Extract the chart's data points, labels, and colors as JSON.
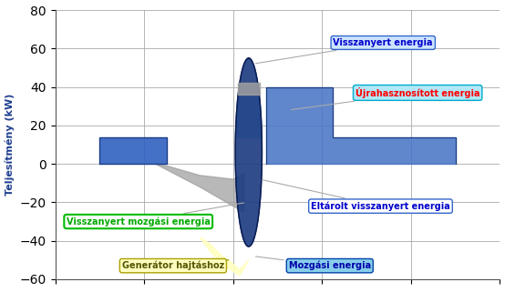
{
  "ylim": [
    -60,
    80
  ],
  "ylabel": "Teljesítmény (kW)",
  "yticks": [
    -60,
    -40,
    -20,
    0,
    20,
    40,
    60,
    80
  ],
  "grid_color": "#aaaaaa",
  "label_visszanyert": "Visszanyert energia",
  "label_ujrahasznosított": "Újrahasznosított energia",
  "label_visszanyert_mozgasi": "Visszanyert mozgási energia",
  "label_eltarolt": "Eltárolt visszanyert energia",
  "label_generator": "Generátor hajtáshoz",
  "label_mozgasi": "Mozgási energia",
  "color_mid_blue": "#4472c4",
  "color_dark_blue": "#1a3a80",
  "color_light_blue": "#87ceeb",
  "color_cyan": "#a8d8ea",
  "color_gray": "#a0a0a0",
  "color_green": "#c8f0a0",
  "color_yellow": "#ffffc0",
  "color_left_rect": "#3060c0"
}
